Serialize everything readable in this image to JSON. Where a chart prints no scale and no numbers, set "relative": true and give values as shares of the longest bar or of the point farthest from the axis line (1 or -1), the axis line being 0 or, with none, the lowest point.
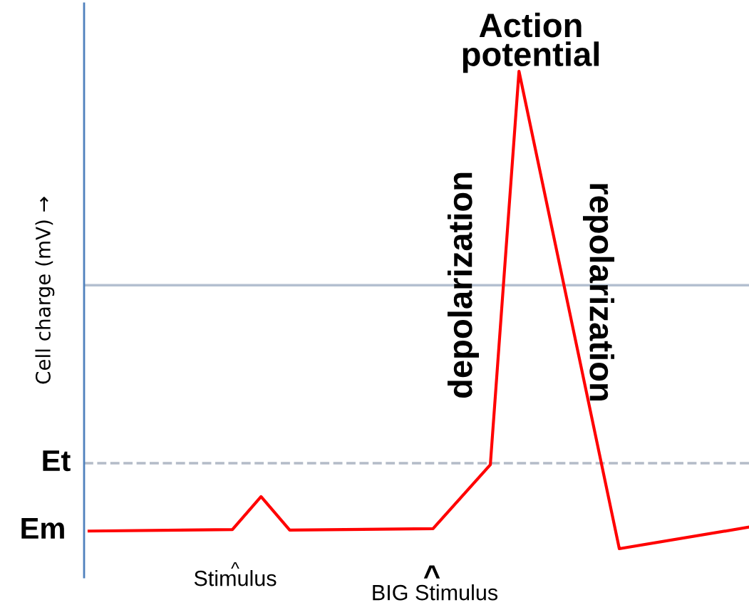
{
  "chart_data": {
    "type": "line",
    "relative": true,
    "ylabel": "Cell charge (mV) →",
    "categories": [
      null,
      null,
      null,
      null,
      null,
      null,
      null,
      null,
      null,
      null,
      null,
      null,
      null,
      null,
      null,
      null,
      null,
      null,
      null,
      null,
      null,
      null,
      null,
      null,
      null,
      null,
      null,
      null,
      null,
      null,
      null,
      null,
      null,
      null,
      null,
      null,
      null,
      null,
      null,
      null,
      null,
      null,
      null,
      null,
      null,
      null,
      null
    ],
    "series": [
      {
        "color": "#ff0000",
        "values": [
          0.037,
          null,
          null,
          null,
          null,
          null,
          null,
          null,
          null,
          null,
          0.04,
          null,
          0.109,
          null,
          0.039,
          null,
          null,
          null,
          null,
          null,
          null,
          null,
          null,
          null,
          0.042,
          null,
          null,
          null,
          0.176,
          null,
          1,
          null,
          null,
          null,
          null,
          null,
          null,
          0,
          null,
          null,
          null,
          null,
          null,
          null,
          null,
          null,
          0.045
        ]
      }
    ],
    "ref_lines": [
      {
        "axis": "y",
        "value": 0.552,
        "color": "#b4c0d0",
        "line_style": "solid"
      },
      {
        "axis": "y",
        "value": 0.179,
        "label": "Et",
        "color": "#b4bcc8",
        "line_style": "dashed"
      }
    ],
    "annotations": [
      "Action\npotential",
      "depolarization",
      "repolarization",
      "^",
      "Stimulus",
      "^",
      "BIG Stimulus",
      "Em"
    ],
    "grid": false,
    "legend": false
  }
}
